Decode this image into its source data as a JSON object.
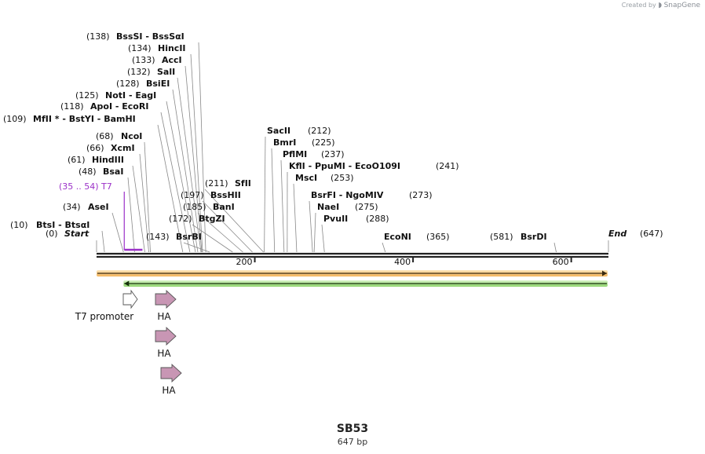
{
  "header": {
    "created_by": "Created by",
    "brand": "SnapGene"
  },
  "map": {
    "name": "SB53",
    "length_label": "647 bp",
    "length": 647
  },
  "ruler": {
    "ticks": [
      200,
      400,
      600
    ]
  },
  "ends": {
    "start": "Start",
    "start_pos": "(0)",
    "end": "End",
    "end_pos": "(647)"
  },
  "enzymes": [
    {
      "pos": "(10)",
      "name": "BtsI  - BtsαI",
      "cut": 10
    },
    {
      "pos": "(34)",
      "name": "AseI",
      "cut": 34
    },
    {
      "pos": "(48)",
      "name": "BsaI",
      "cut": 48
    },
    {
      "pos": "(61)",
      "name": "HindIII",
      "cut": 61
    },
    {
      "pos": "(66)",
      "name": "XcmI",
      "cut": 66
    },
    {
      "pos": "(68)",
      "name": "NcoI",
      "cut": 68
    },
    {
      "pos": "(109)",
      "name": "MfII *  - BstYI  - BamHI",
      "cut": 109
    },
    {
      "pos": "(118)",
      "name": "ApoI  - EcoRI",
      "cut": 118
    },
    {
      "pos": "(125)",
      "name": "NotI  - EagI",
      "cut": 125
    },
    {
      "pos": "(128)",
      "name": "BsiEI",
      "cut": 128
    },
    {
      "pos": "(132)",
      "name": "SalI",
      "cut": 132
    },
    {
      "pos": "(133)",
      "name": "AccI",
      "cut": 133
    },
    {
      "pos": "(134)",
      "name": "HincII",
      "cut": 134
    },
    {
      "pos": "(138)",
      "name": "BssSI  - BssSαI",
      "cut": 138
    },
    {
      "pos": "(143)",
      "name": "BsrBI",
      "cut": 143
    },
    {
      "pos": "(172)",
      "name": "BtgZI",
      "cut": 172
    },
    {
      "pos": "(185)",
      "name": "BanI",
      "cut": 185
    },
    {
      "pos": "(197)",
      "name": "BssHII",
      "cut": 197
    },
    {
      "pos": "(211)",
      "name": "SfII",
      "cut": 211
    },
    {
      "pos": "(212)",
      "name": "SacII",
      "cut": 212
    },
    {
      "pos": "(225)",
      "name": "BmrI",
      "cut": 225
    },
    {
      "pos": "(237)",
      "name": "PflMI",
      "cut": 237
    },
    {
      "pos": "(241)",
      "name": "KflI  - PpuMI  - EcoO109I",
      "cut": 241
    },
    {
      "pos": "(253)",
      "name": "MscI",
      "cut": 253
    },
    {
      "pos": "(273)",
      "name": "BsrFI  - NgoMIV",
      "cut": 273
    },
    {
      "pos": "(275)",
      "name": "NaeI",
      "cut": 275
    },
    {
      "pos": "(288)",
      "name": "PvuII",
      "cut": 288
    },
    {
      "pos": "(365)",
      "name": "EcoNI",
      "cut": 365
    },
    {
      "pos": "(581)",
      "name": "BsrDI",
      "cut": 581
    }
  ],
  "primer": {
    "label": "(35 .. 54)  T7",
    "start": 35,
    "end": 54,
    "color": "#9b30c8"
  },
  "features": [
    {
      "label": "T7 promoter",
      "start": 35,
      "end": 54,
      "color": "#ffffff"
    },
    {
      "label": "HA",
      "start": 76,
      "end": 102,
      "color": "#c896b4"
    },
    {
      "label": "HA",
      "start": 76,
      "end": 102,
      "color": "#c896b4"
    },
    {
      "label": "HA",
      "start": 82,
      "end": 108,
      "color": "#c896b4"
    }
  ],
  "orfs": [
    {
      "direction": "forward",
      "start": 1,
      "end": 645,
      "color": "#f2a33a"
    },
    {
      "direction": "reverse",
      "start": 35,
      "end": 645,
      "color": "#6cc24a"
    }
  ],
  "colors": {
    "text": "#111111",
    "backbone": "#222222",
    "leader": "#888888"
  }
}
